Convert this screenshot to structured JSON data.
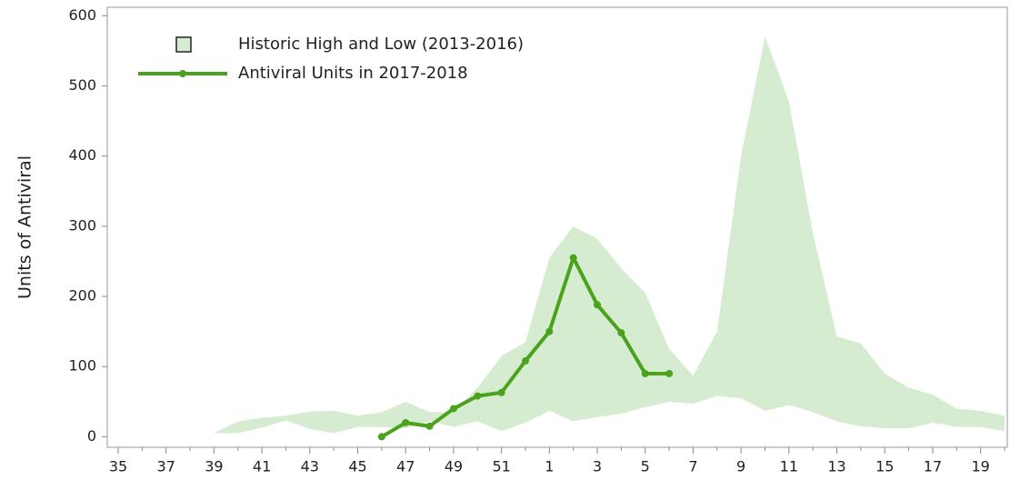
{
  "chart_data": {
    "type": "line",
    "y_label": "Units of Antiviral",
    "categories": [
      "35",
      null,
      "37",
      null,
      "39",
      null,
      "41",
      null,
      "43",
      null,
      "45",
      null,
      "47",
      null,
      "49",
      null,
      "51",
      null,
      "1",
      null,
      "3",
      null,
      "5",
      null,
      "7",
      null,
      "9",
      null,
      "11",
      null,
      "13",
      null,
      "15",
      null,
      "17",
      null,
      "19",
      null
    ],
    "ylim": [
      -15,
      612
    ],
    "yticks": [
      0,
      100,
      200,
      300,
      400,
      500,
      600
    ],
    "grid": false,
    "legend": "upper left",
    "series": [
      {
        "name": "Historic High and Low (2013-2016)",
        "type": "band",
        "color": "#d6ecd0",
        "high": [
          null,
          null,
          null,
          null,
          5,
          22,
          27,
          30,
          36,
          37,
          30,
          35,
          50,
          35,
          35,
          70,
          115,
          135,
          255,
          300,
          282,
          240,
          205,
          125,
          87,
          150,
          400,
          570,
          478,
          290,
          143,
          133,
          90,
          70,
          60,
          40,
          37,
          30
        ],
        "low": [
          null,
          null,
          null,
          null,
          5,
          5,
          13,
          23,
          11,
          5,
          14,
          14,
          12,
          22,
          14,
          22,
          8,
          20,
          37,
          22,
          28,
          33,
          42,
          50,
          47,
          58,
          55,
          37,
          45,
          35,
          22,
          15,
          12,
          12,
          20,
          14,
          14,
          8
        ]
      },
      {
        "name": "Antiviral Units in 2017-2018",
        "type": "line",
        "color": "#4aa31c",
        "values": [
          null,
          null,
          null,
          null,
          null,
          null,
          null,
          null,
          null,
          null,
          null,
          0,
          20,
          15,
          40,
          58,
          63,
          108,
          150,
          255,
          188,
          148,
          90,
          90,
          null,
          null,
          null,
          null,
          null,
          null,
          null,
          null,
          null,
          null,
          null,
          null,
          null,
          null
        ]
      }
    ]
  }
}
